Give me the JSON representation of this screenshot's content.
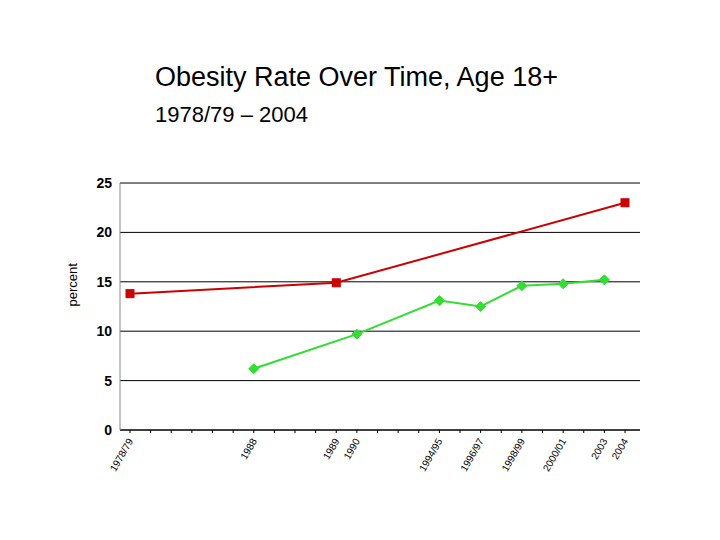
{
  "chart_data": {
    "type": "line",
    "title": "Obesity Rate Over Time, Age 18+",
    "subtitle": "1978/79 – 2004",
    "y_label": "percent",
    "categories": [
      "1978/79",
      null,
      null,
      null,
      null,
      null,
      "1988",
      null,
      null,
      null,
      "1989",
      "1990",
      null,
      null,
      null,
      "1994/95",
      null,
      "1996/97",
      null,
      "1998/99",
      null,
      "2000/01",
      null,
      "2003",
      "2004"
    ],
    "series": [
      {
        "color": "#cc0000",
        "marker": "square",
        "values": [
          13.8,
          null,
          null,
          null,
          null,
          null,
          null,
          null,
          null,
          null,
          14.9,
          null,
          null,
          null,
          null,
          null,
          null,
          null,
          null,
          null,
          null,
          null,
          null,
          null,
          23
        ]
      },
      {
        "color": "#33dd33",
        "marker": "diamond",
        "values": [
          null,
          null,
          null,
          null,
          null,
          null,
          6.2,
          null,
          null,
          null,
          null,
          9.7,
          null,
          null,
          null,
          13.1,
          null,
          12.5,
          null,
          14.6,
          null,
          14.8,
          null,
          15.2,
          null
        ]
      }
    ],
    "ylim": [
      0,
      25
    ],
    "yticks": [
      0,
      5,
      10,
      15,
      20,
      25
    ],
    "grid": true
  }
}
